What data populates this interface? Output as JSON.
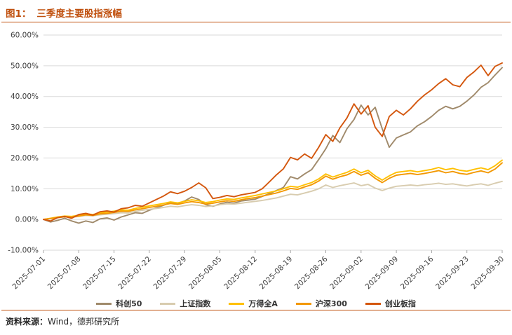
{
  "header": {
    "figure_label": "图1：",
    "title": "三季度主要股指涨幅"
  },
  "footer": {
    "source_label": "资料来源：",
    "source_value": "Wind，德邦研究所"
  },
  "colors": {
    "accent": "#C0500E",
    "gridline": "#DADADA",
    "axis_text": "#3F3F3F",
    "tick_mark": "#A6A6A6"
  },
  "chart_data": {
    "type": "line",
    "title": "三季度主要股指涨幅",
    "xlabel": "",
    "ylabel": "",
    "ylim": [
      -10,
      60
    ],
    "y_ticks": [
      -10,
      0,
      10,
      20,
      30,
      40,
      50,
      60
    ],
    "y_tick_format": "0.00%",
    "grid": true,
    "legend_position": "bottom",
    "x_tick_labels": [
      "2025-07-01",
      "2025-07-08",
      "2025-07-15",
      "2025-07-22",
      "2025-07-29",
      "2025-08-05",
      "2025-08-12",
      "2025-08-19",
      "2025-08-26",
      "2025-09-02",
      "2025-09-09",
      "2025-09-16",
      "2025-09-23",
      "2025-09-30"
    ],
    "x_tick_indices": [
      0,
      5,
      10,
      15,
      20,
      25,
      30,
      35,
      40,
      45,
      50,
      55,
      60,
      65
    ],
    "series": [
      {
        "name": "科创50",
        "color": "#A08A6B",
        "values": [
          0,
          -0.8,
          -0.3,
          0.4,
          -0.5,
          -1.2,
          -0.5,
          -1.0,
          0.2,
          0.5,
          -0.2,
          0.8,
          1.5,
          2.2,
          2.0,
          3.0,
          3.8,
          4.6,
          5.5,
          5.2,
          6.0,
          7.3,
          6.5,
          4.8,
          4.3,
          5.0,
          5.6,
          5.3,
          6.0,
          6.3,
          6.6,
          7.5,
          8.4,
          9.4,
          10.4,
          13.9,
          13.2,
          14.8,
          16.2,
          19.5,
          23.0,
          27.3,
          25.0,
          29.5,
          32.5,
          37.2,
          34.0,
          36.5,
          29.5,
          23.5,
          26.5,
          27.5,
          28.5,
          30.5,
          31.8,
          33.5,
          35.5,
          36.8,
          36.0,
          36.8,
          38.5,
          40.5,
          43.0,
          44.5,
          47.0,
          49.4
        ]
      },
      {
        "name": "上证指数",
        "color": "#D8CCAF",
        "values": [
          0,
          0.3,
          0.6,
          0.8,
          0.7,
          1.0,
          1.3,
          1.2,
          1.5,
          1.7,
          1.9,
          2.2,
          2.1,
          2.6,
          3.0,
          3.3,
          3.6,
          3.9,
          4.3,
          4.1,
          4.5,
          4.8,
          4.6,
          4.2,
          4.4,
          4.8,
          5.1,
          5.0,
          5.3,
          5.6,
          5.9,
          6.2,
          6.6,
          7.0,
          7.6,
          8.2,
          8.0,
          8.6,
          9.2,
          10.0,
          11.2,
          10.4,
          11.0,
          11.4,
          11.9,
          11.0,
          11.4,
          10.2,
          9.4,
          10.2,
          10.8,
          11.0,
          11.2,
          11.0,
          11.3,
          11.5,
          11.8,
          11.4,
          11.6,
          11.2,
          10.9,
          11.3,
          11.6,
          11.1,
          11.8,
          12.4
        ]
      },
      {
        "name": "万得全A",
        "color": "#FFC000",
        "values": [
          0,
          0.4,
          0.8,
          1.1,
          1.0,
          1.4,
          1.8,
          1.6,
          2.1,
          2.4,
          2.7,
          3.1,
          3.0,
          3.6,
          4.0,
          4.4,
          4.8,
          5.2,
          5.7,
          5.4,
          5.9,
          6.4,
          6.1,
          5.5,
          5.8,
          6.3,
          6.7,
          6.5,
          7.0,
          7.4,
          7.8,
          8.3,
          8.8,
          9.3,
          10.0,
          10.8,
          10.5,
          11.3,
          12.0,
          13.2,
          14.8,
          13.8,
          14.6,
          15.3,
          16.4,
          15.2,
          16.0,
          14.2,
          12.8,
          14.2,
          15.3,
          15.6,
          15.9,
          15.5,
          15.9,
          16.3,
          16.9,
          16.2,
          16.6,
          16.0,
          15.7,
          16.3,
          16.8,
          16.2,
          17.5,
          19.3
        ]
      },
      {
        "name": "沪深300",
        "color": "#F39800",
        "values": [
          0,
          0.3,
          0.6,
          0.9,
          0.8,
          1.1,
          1.5,
          1.3,
          1.8,
          2.0,
          2.3,
          2.7,
          2.6,
          3.1,
          3.5,
          3.9,
          4.3,
          4.7,
          5.2,
          4.9,
          5.4,
          5.8,
          5.5,
          5.0,
          5.3,
          5.7,
          6.1,
          5.9,
          6.4,
          6.8,
          7.1,
          7.6,
          8.1,
          8.6,
          9.3,
          10.1,
          9.8,
          10.6,
          11.3,
          12.5,
          14.1,
          13.1,
          13.9,
          14.5,
          15.6,
          14.4,
          15.2,
          13.4,
          12.0,
          13.4,
          14.4,
          14.7,
          15.0,
          14.6,
          15.0,
          15.4,
          15.9,
          15.2,
          15.6,
          15.0,
          14.7,
          15.3,
          15.8,
          15.2,
          16.4,
          18.4
        ]
      },
      {
        "name": "创业板指",
        "color": "#D4570E",
        "values": [
          0,
          -0.5,
          0.6,
          1.0,
          0.4,
          1.6,
          2.0,
          1.4,
          2.5,
          2.8,
          2.4,
          3.5,
          3.8,
          4.6,
          4.3,
          5.4,
          6.5,
          7.6,
          9.0,
          8.4,
          9.2,
          10.4,
          11.9,
          10.3,
          6.8,
          7.2,
          7.8,
          7.4,
          8.0,
          8.4,
          8.8,
          10.0,
          12.2,
          14.5,
          16.5,
          20.2,
          19.4,
          21.3,
          19.9,
          23.5,
          27.6,
          25.4,
          29.8,
          33.0,
          37.6,
          34.3,
          37.0,
          30.0,
          27.0,
          33.5,
          35.5,
          34.0,
          36.0,
          38.5,
          40.5,
          42.2,
          44.2,
          45.8,
          43.8,
          43.2,
          46.2,
          48.0,
          50.2,
          46.8,
          49.8,
          50.9
        ]
      }
    ]
  }
}
